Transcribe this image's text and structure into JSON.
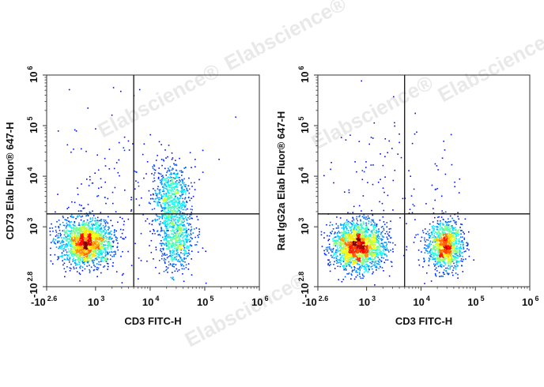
{
  "watermark": "Elabscience®",
  "chart_data": [
    {
      "type": "scatter",
      "subtype": "flow-cytometry-density-dot-plot",
      "xlabel": "CD3 FITC-H",
      "ylabel": "CD73 Elab Fluor® 647-H",
      "x_ticks": [
        {
          "base": "-10",
          "exp": "2.6",
          "value": -398
        },
        {
          "base": "10",
          "exp": "3",
          "value": 1000
        },
        {
          "base": "10",
          "exp": "4",
          "value": 10000
        },
        {
          "base": "10",
          "exp": "5",
          "value": 100000
        },
        {
          "base": "10",
          "exp": "6",
          "value": 1000000
        }
      ],
      "y_ticks": [
        {
          "base": "-10",
          "exp": "2.8",
          "value": -631
        },
        {
          "base": "10",
          "exp": "3",
          "value": 1000
        },
        {
          "base": "10",
          "exp": "4",
          "value": 10000
        },
        {
          "base": "10",
          "exp": "5",
          "value": 100000
        },
        {
          "base": "10",
          "exp": "6",
          "value": 1000000
        }
      ],
      "xlim": [
        -398,
        1000000
      ],
      "ylim": [
        -631,
        1000000
      ],
      "gate": {
        "x": 5000,
        "y": 1800
      },
      "populations": [
        {
          "name": "CD3- CD73-",
          "x_center": 700,
          "y_center": 600,
          "weight": 0.55
        },
        {
          "name": "CD3+ CD73+",
          "x_center": 23000,
          "y_center": 4000,
          "weight": 0.2
        },
        {
          "name": "CD3+ CD73-",
          "x_center": 30000,
          "y_center": 700,
          "weight": 0.2
        },
        {
          "name": "scattered",
          "x_center": 3000,
          "y_center": 5000,
          "weight": 0.05
        }
      ]
    },
    {
      "type": "scatter",
      "subtype": "flow-cytometry-density-dot-plot",
      "xlabel": "CD3 FITC-H",
      "ylabel": "Rat IgG2a Elab Fluor® 647-H",
      "x_ticks": [
        {
          "base": "-10",
          "exp": "2.6",
          "value": -398
        },
        {
          "base": "10",
          "exp": "3",
          "value": 1000
        },
        {
          "base": "10",
          "exp": "4",
          "value": 10000
        },
        {
          "base": "10",
          "exp": "5",
          "value": 100000
        },
        {
          "base": "10",
          "exp": "6",
          "value": 1000000
        }
      ],
      "y_ticks": [
        {
          "base": "-10",
          "exp": "2.8",
          "value": -631
        },
        {
          "base": "10",
          "exp": "3",
          "value": 1000
        },
        {
          "base": "10",
          "exp": "4",
          "value": 10000
        },
        {
          "base": "10",
          "exp": "5",
          "value": 100000
        },
        {
          "base": "10",
          "exp": "6",
          "value": 1000000
        }
      ],
      "xlim": [
        -398,
        1000000
      ],
      "ylim": [
        -631,
        1000000
      ],
      "gate": {
        "x": 5000,
        "y": 1800
      },
      "populations": [
        {
          "name": "CD3- isotype",
          "x_center": 750,
          "y_center": 500,
          "weight": 0.6
        },
        {
          "name": "CD3+ isotype",
          "x_center": 27000,
          "y_center": 500,
          "weight": 0.36
        },
        {
          "name": "scattered",
          "x_center": 3000,
          "y_center": 5000,
          "weight": 0.04
        }
      ]
    }
  ]
}
